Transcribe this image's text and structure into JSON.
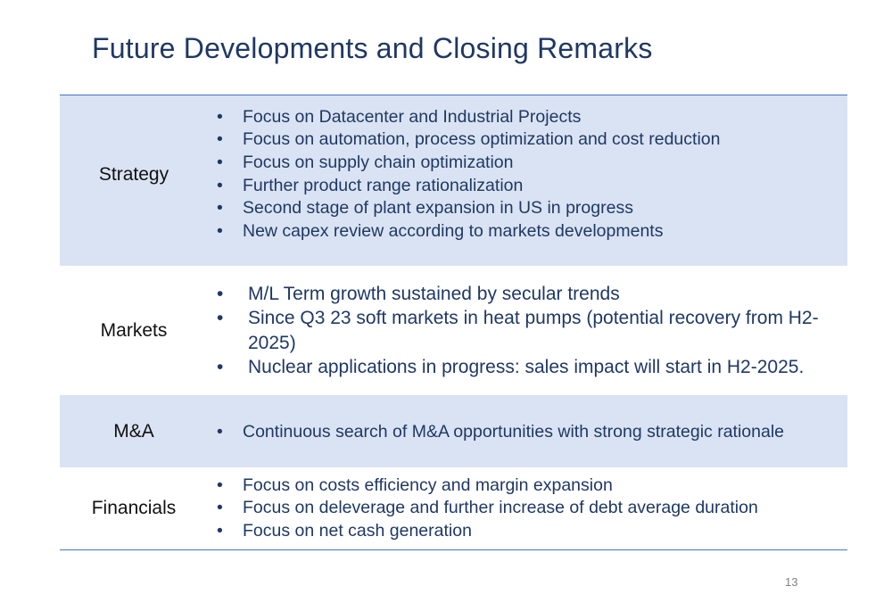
{
  "slide": {
    "title": "Future Developments and Closing Remarks",
    "page_number": "13"
  },
  "rows": [
    {
      "label": "Strategy",
      "bullets": [
        "Focus on Datacenter and Industrial Projects",
        "Focus on automation, process optimization and cost reduction",
        "Focus on supply chain optimization",
        "Further product range rationalization",
        "Second stage of plant expansion  in US in progress",
        "New capex review according to markets developments"
      ]
    },
    {
      "label": "Markets",
      "bullets": [
        "M/L Term growth sustained by secular trends",
        "Since Q3 23 soft markets in heat pumps (potential recovery from H2-2025)",
        "Nuclear applications in progress: sales impact will start in H2-2025."
      ]
    },
    {
      "label": "M&A",
      "bullets": [
        "Continuous search of M&A opportunities with strong strategic rationale"
      ]
    },
    {
      "label": "Financials",
      "bullets": [
        "Focus on costs efficiency and margin expansion",
        "Focus on deleverage and further increase of debt average duration",
        "Focus on net cash generation"
      ]
    }
  ],
  "colors": {
    "title": "#1f3864",
    "row_shade": "#dae3f3",
    "rule": "#4472c4",
    "label_text": "#111111"
  }
}
